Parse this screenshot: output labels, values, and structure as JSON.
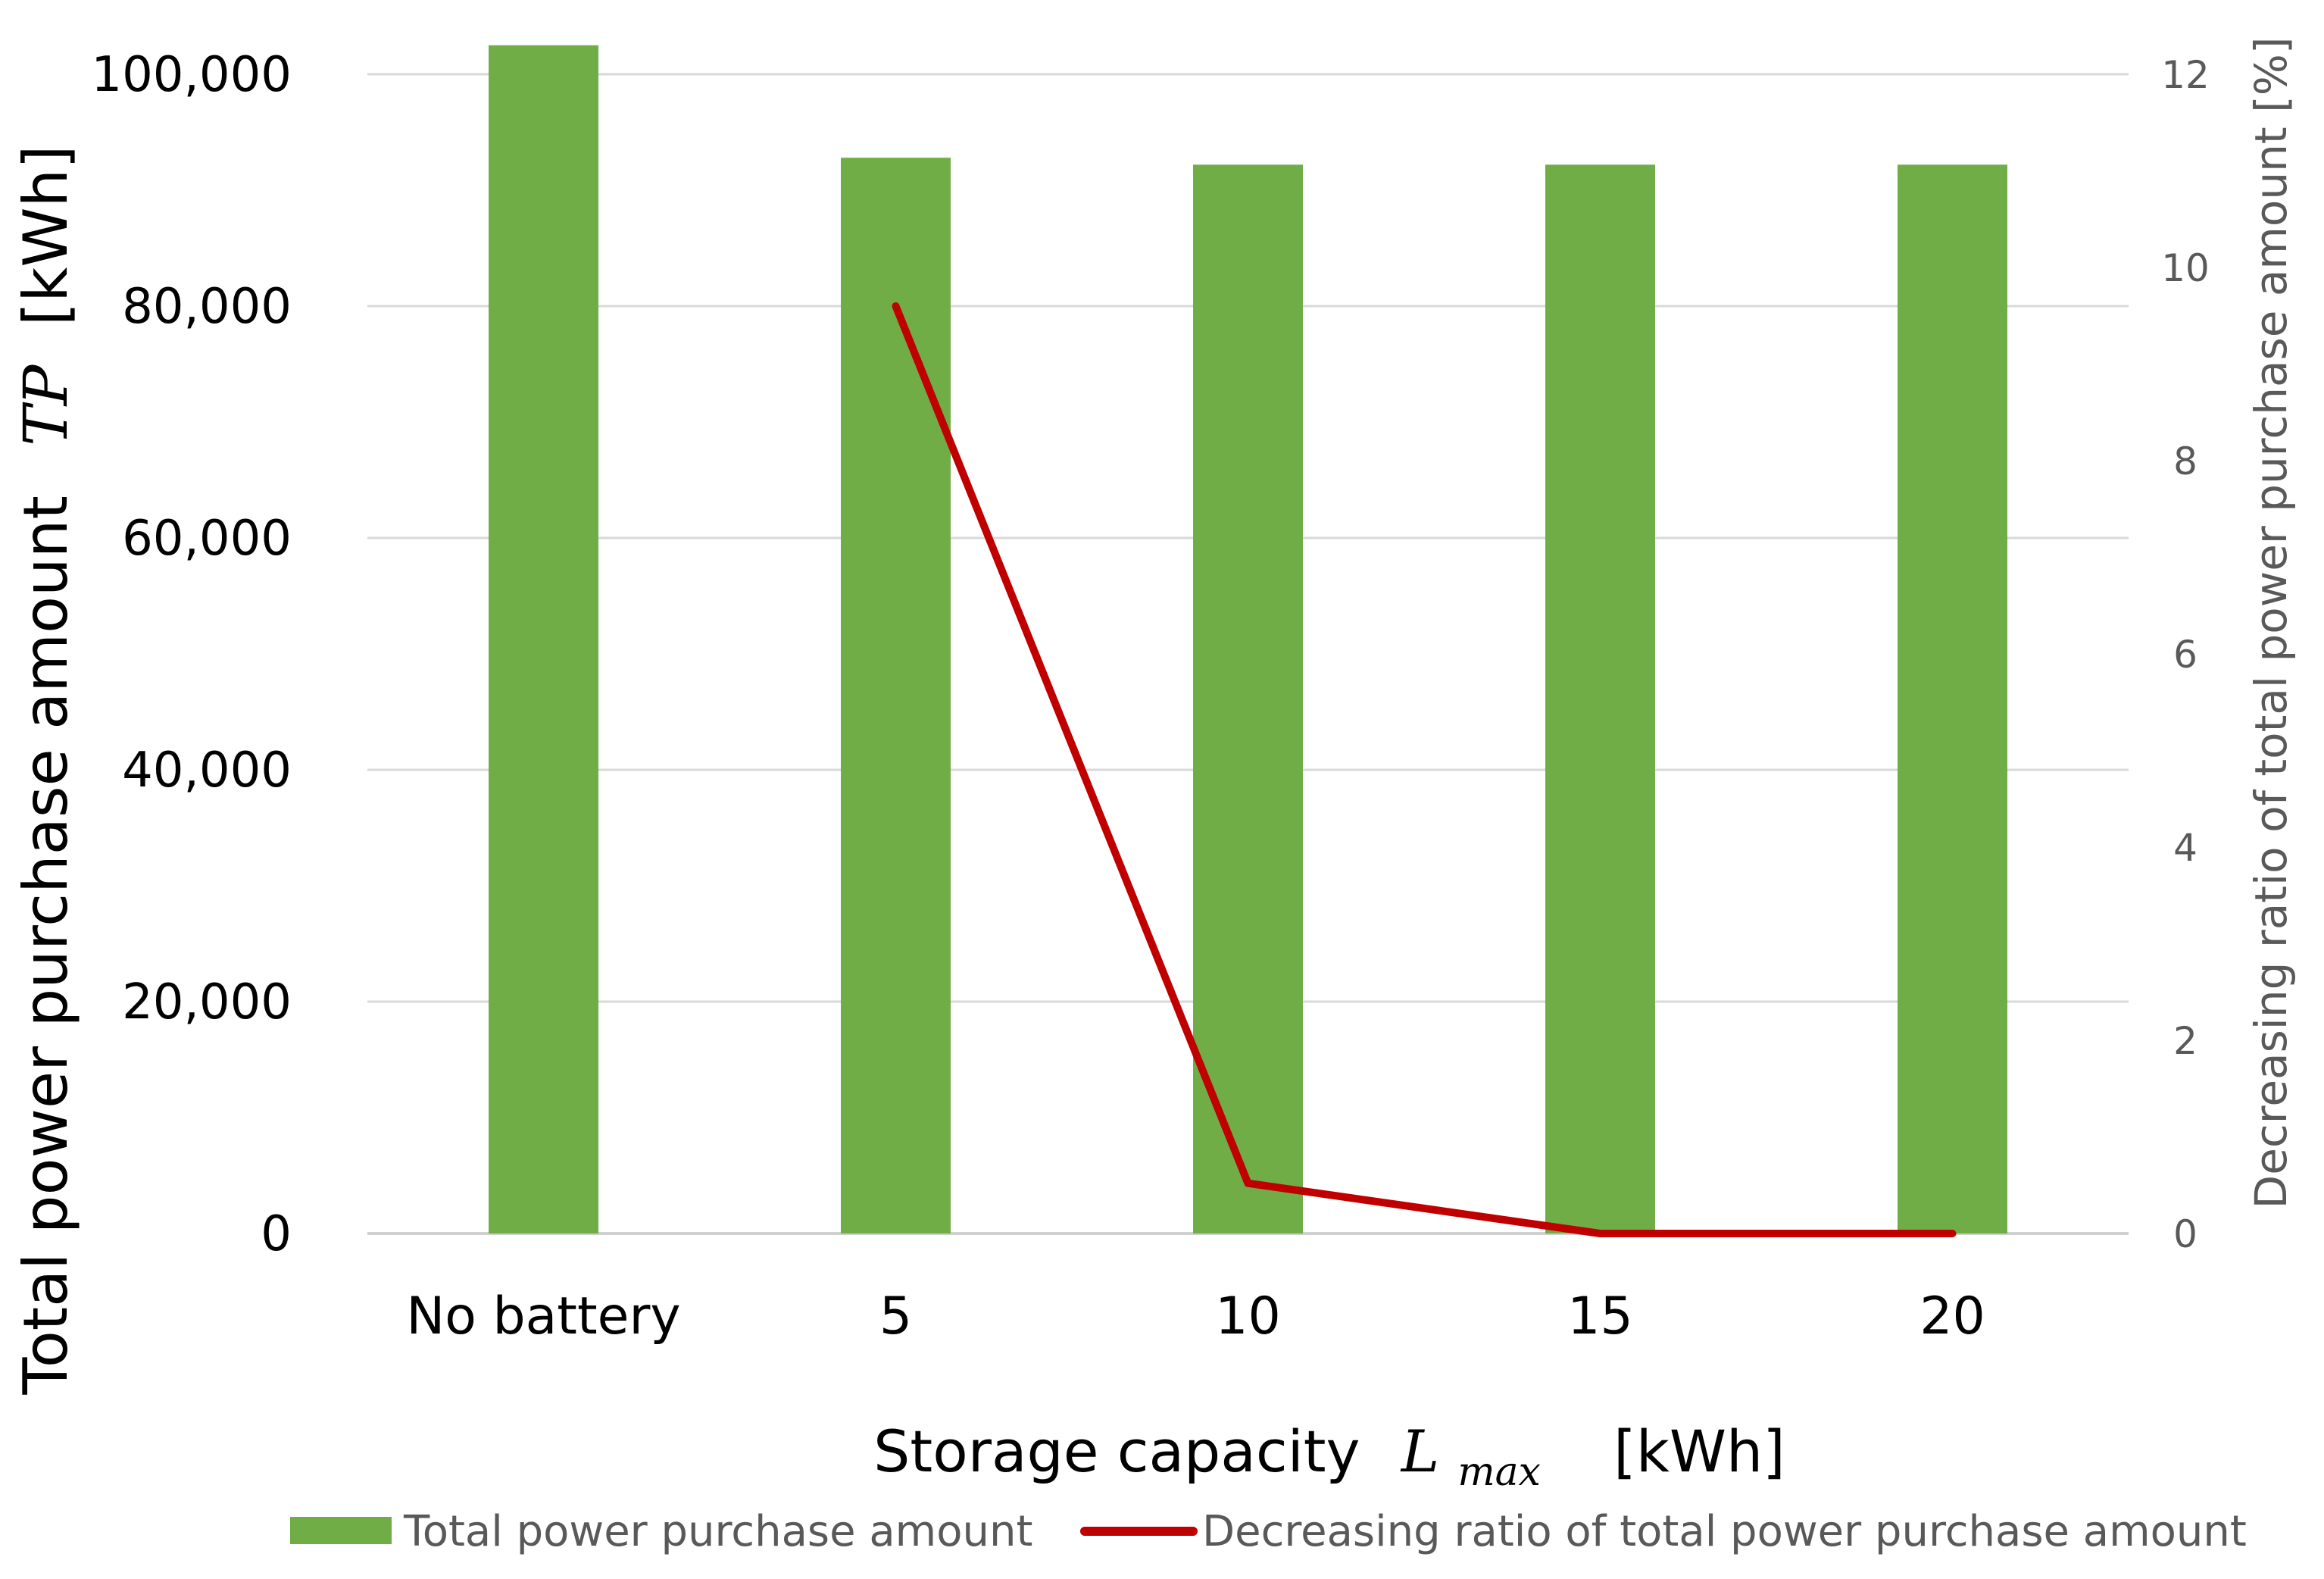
{
  "chart_data": {
    "type": "bar",
    "categories": [
      "No battery",
      "5",
      "10",
      "15",
      "20"
    ],
    "series": [
      {
        "name": "Total power purchase amount",
        "type": "bar",
        "axis": "left",
        "color": "#70AD47",
        "values": [
          102500,
          92800,
          92200,
          92200,
          92200
        ]
      },
      {
        "name": "Decreasing ratio of total power purchase amount",
        "type": "line",
        "axis": "right",
        "color": "#C00000",
        "values": [
          null,
          9.6,
          0.52,
          0,
          0
        ]
      }
    ],
    "xlabel": {
      "prefix": "Storage capacity",
      "symbol": "L",
      "subscript": "max",
      "unit": "[kWh]"
    },
    "ylabel_left": {
      "text": "Total power purchase amount",
      "symbol": "TP",
      "unit": "[kWh]"
    },
    "ylabel_right": "Decreasing ratio of total power purchase amount [%]",
    "ylim_left": [
      0,
      100000
    ],
    "yticks_left": [
      "0",
      "20,000",
      "40,000",
      "60,000",
      "80,000",
      "100,000"
    ],
    "ytick_values_left": [
      0,
      20000,
      40000,
      60000,
      80000,
      100000
    ],
    "ylim_right": [
      0,
      12
    ],
    "yticks_right": [
      "0",
      "2",
      "4",
      "6",
      "8",
      "10",
      "12"
    ],
    "ytick_values_right": [
      0,
      2,
      4,
      6,
      8,
      10,
      12
    ],
    "grid": true,
    "legend_position": "bottom"
  }
}
